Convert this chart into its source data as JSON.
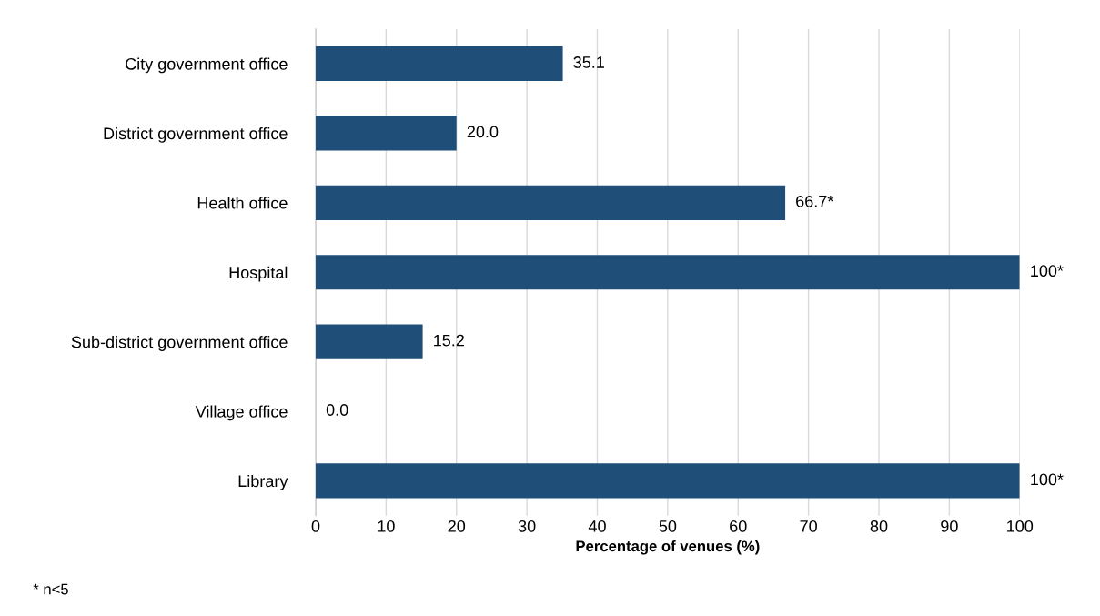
{
  "chart_data": {
    "type": "bar",
    "orientation": "horizontal",
    "xlabel": "Percentage of venues (%)",
    "categories": [
      "City government office",
      "District government office",
      "Health office",
      "Hospital",
      "Sub-district government office",
      "Village office",
      "Library"
    ],
    "values": [
      35.1,
      20.0,
      66.7,
      100,
      15.2,
      0.0,
      100
    ],
    "value_labels": [
      "35.1",
      "20.0",
      "66.7*",
      "100*",
      "15.2",
      "0.0",
      "100*"
    ],
    "color": "#1f4e79",
    "xlim": [
      0,
      100
    ],
    "xticks": [
      0,
      10,
      20,
      30,
      40,
      50,
      60,
      70,
      80,
      90,
      100
    ],
    "grid": "x",
    "legend": false,
    "annotations": [
      "* n<5"
    ]
  }
}
